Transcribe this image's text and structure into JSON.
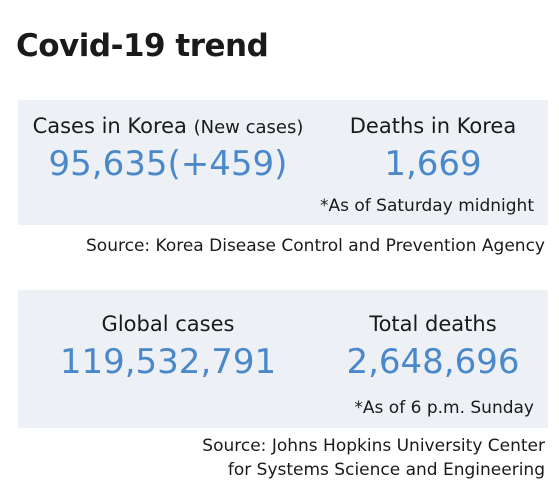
{
  "title": "Covid-19 trend",
  "panels": [
    {
      "items": [
        {
          "label": "Cases in Korea",
          "sublabel": "(New cases)",
          "value": "95,635(+459)"
        },
        {
          "label": "Deaths in Korea",
          "value": "1,669"
        }
      ],
      "note": "*As of Saturday midnight",
      "source": [
        "Source: Korea Disease Control and Prevention Agency"
      ]
    },
    {
      "items": [
        {
          "label": "Global cases",
          "value": "119,532,791"
        },
        {
          "label": "Total deaths",
          "value": "2,648,696"
        }
      ],
      "note": "*As of 6 p.m. Sunday",
      "source": [
        "Source: Johns Hopkins University Center",
        "for Systems Science and Engineering"
      ]
    }
  ]
}
